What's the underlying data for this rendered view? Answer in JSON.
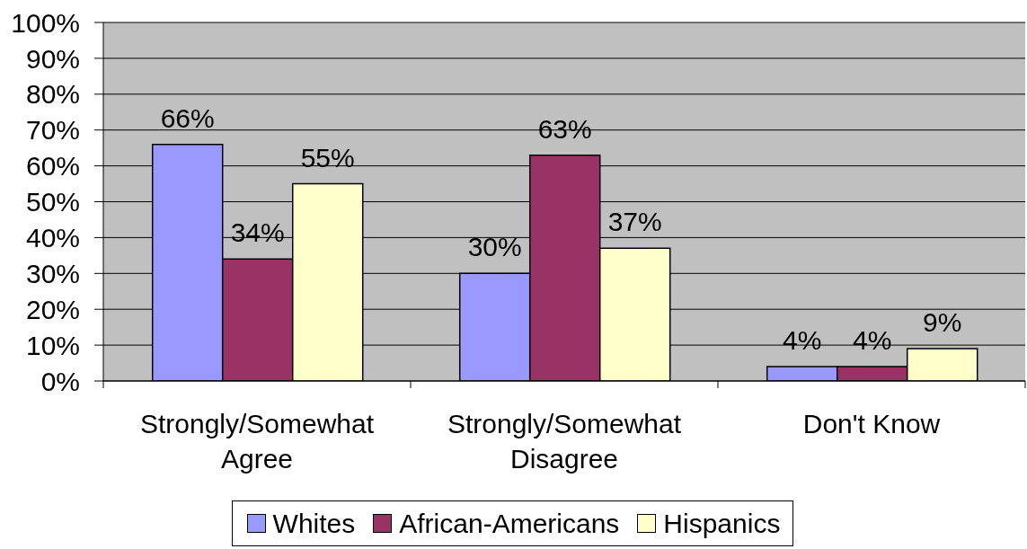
{
  "chart_data": {
    "type": "bar",
    "categories": [
      "Strongly/Somewhat Agree",
      "Strongly/Somewhat Disagree",
      "Don't Know"
    ],
    "series": [
      {
        "name": "Whites",
        "color": "#9999ff",
        "values": [
          66,
          30,
          4
        ],
        "value_labels": [
          "66%",
          "30%",
          "4%"
        ]
      },
      {
        "name": "African-Americans",
        "color": "#993366",
        "values": [
          34,
          63,
          4
        ],
        "value_labels": [
          "34%",
          "63%",
          "4%"
        ]
      },
      {
        "name": "Hispanics",
        "color": "#ffffcc",
        "values": [
          55,
          37,
          9
        ],
        "value_labels": [
          "55%",
          "37%",
          "9%"
        ]
      }
    ],
    "ylim": [
      0,
      100
    ],
    "yticks": [
      {
        "value": 0,
        "label": "0%"
      },
      {
        "value": 10,
        "label": "10%"
      },
      {
        "value": 20,
        "label": "20%"
      },
      {
        "value": 30,
        "label": "30%"
      },
      {
        "value": 40,
        "label": "40%"
      },
      {
        "value": 50,
        "label": "50%"
      },
      {
        "value": 60,
        "label": "60%"
      },
      {
        "value": 70,
        "label": "70%"
      },
      {
        "value": 80,
        "label": "80%"
      },
      {
        "value": 90,
        "label": "90%"
      },
      {
        "value": 100,
        "label": "100%"
      }
    ],
    "grid": "y",
    "legend": "bottom"
  }
}
